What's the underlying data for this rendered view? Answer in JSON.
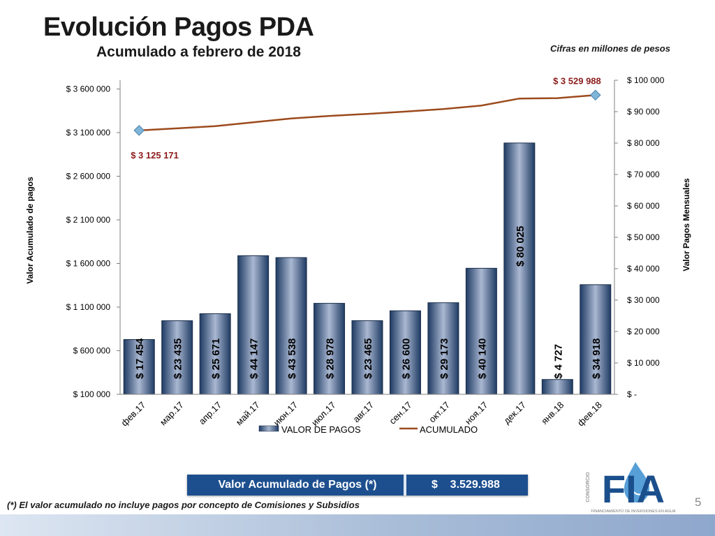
{
  "slide": {
    "title": "Evolución Pagos PDA",
    "subtitle": "Acumulado a febrero de 2018",
    "units_note": "Cifras en millones de pesos",
    "summary_label": "Valor Acumulado de Pagos (*)",
    "summary_value": "$    3.529.988",
    "footnote": "(*) El valor acumulado no incluye pagos por concepto de Comisiones y Subsidios",
    "page_number": "5",
    "logo_text": "FIA",
    "logo_side_text": "CONSORCIO",
    "logo_caption": "FINANCIAMIENTO DE INVERSIONES EN AGUA"
  },
  "colors": {
    "bar_dark": "#1f3b63",
    "bar_light": "#aab8d2",
    "line": "#9c4a1c",
    "marker": "#7fb5d8",
    "annotation": "#8b1a1a",
    "band": "#1d4f8f"
  },
  "chart_data": {
    "type": "bar",
    "categories": [
      "фев.17",
      "мар.17",
      "апр.17",
      "май.17",
      "июн.17",
      "июл.17",
      "авг.17",
      "сен.17",
      "окт.17",
      "ноя.17",
      "дек.17",
      "янв.18",
      "фев.18"
    ],
    "series": [
      {
        "name": "VALOR DE PAGOS",
        "type": "bar",
        "axis": "right",
        "values": [
          17454,
          23435,
          25671,
          44147,
          43538,
          28978,
          23465,
          26600,
          29173,
          40140,
          80025,
          4727,
          34918
        ],
        "labels": [
          "$ 17 454",
          "$ 23 435",
          "$ 25 671",
          "$ 44 147",
          "$ 43 538",
          "$ 28 978",
          "$ 23 465",
          "$ 26 600",
          "$ 29 173",
          "$ 40 140",
          "$ 80 025",
          "$ 4 727",
          "$ 34 918"
        ]
      },
      {
        "name": "ACUMULADO",
        "type": "line",
        "axis": "left",
        "values": [
          3125171,
          3148606,
          3174277,
          3218424,
          3261962,
          3290940,
          3314405,
          3341005,
          3370178,
          3410318,
          3490343,
          3495070,
          3529988
        ],
        "annotations": [
          {
            "index": 0,
            "label": "$ 3 125 171"
          },
          {
            "index": 12,
            "label": "$ 3 529 988"
          }
        ]
      }
    ],
    "y_left": {
      "label": "Valor Acumulado de pagos",
      "range": [
        100000,
        3700000
      ],
      "ticks": [
        100000,
        600000,
        1100000,
        1600000,
        2100000,
        2600000,
        3100000,
        3600000
      ],
      "tick_labels": [
        "$ 100 000",
        "$ 600 000",
        "$ 1 100 000",
        "$ 1 600 000",
        "$ 2 100 000",
        "$ 2 600 000",
        "$ 3 100 000",
        "$ 3 600 000"
      ]
    },
    "y_right": {
      "label": "Valor Pagos Mensuales",
      "range": [
        0,
        100000
      ],
      "ticks": [
        0,
        10000,
        20000,
        30000,
        40000,
        50000,
        60000,
        70000,
        80000,
        90000,
        100000
      ],
      "tick_labels": [
        "$ -",
        "$ 10 000",
        "$ 20 000",
        "$ 30 000",
        "$ 40 000",
        "$ 50 000",
        "$ 60 000",
        "$ 70 000",
        "$ 80 000",
        "$ 90 000",
        "$ 100 000"
      ]
    },
    "grid": false,
    "legend": "bottom"
  }
}
